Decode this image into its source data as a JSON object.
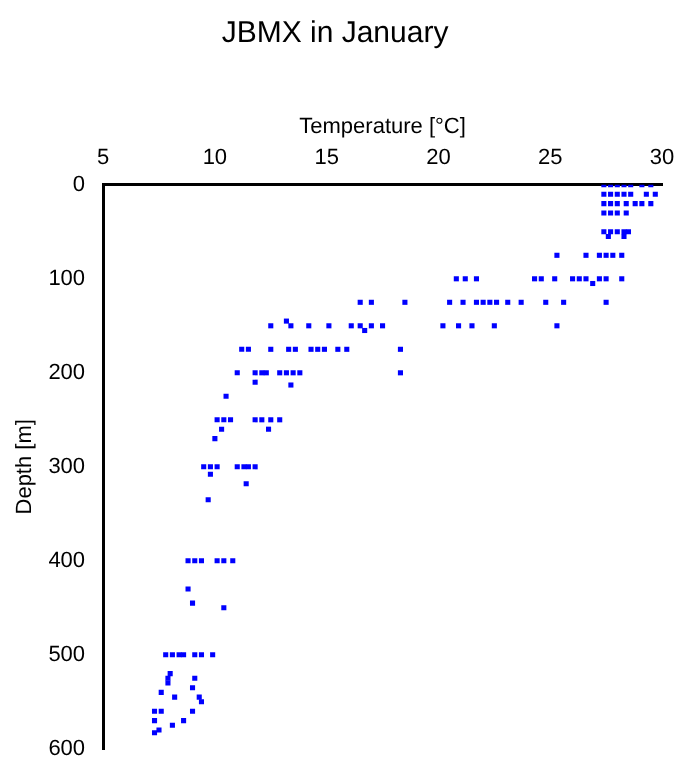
{
  "chart_data": {
    "type": "scatter",
    "title": "JBMX in January",
    "xlabel": "Temperature [°C]",
    "ylabel": "Depth [m]",
    "xlim": [
      5,
      30
    ],
    "xticks": [
      5,
      10,
      15,
      20,
      25,
      30
    ],
    "ylim": [
      600,
      0
    ],
    "yticks": [
      0,
      100,
      200,
      300,
      400,
      500,
      600
    ],
    "grid": false,
    "legend": false,
    "marker": "square",
    "series": [
      {
        "color": "#0000ff",
        "x": [
          27.4,
          27.7,
          28.0,
          28.3,
          28.6,
          29.1,
          29.5,
          27.4,
          27.7,
          28.0,
          28.3,
          28.6,
          29.3,
          29.7,
          27.4,
          27.7,
          28.0,
          28.4,
          28.8,
          29.1,
          29.5,
          27.4,
          27.7,
          28.0,
          28.4,
          27.4,
          27.7,
          28.0,
          28.3,
          28.5,
          27.6,
          28.3,
          25.3,
          26.6,
          27.2,
          27.5,
          27.8,
          28.2,
          20.8,
          21.2,
          21.7,
          24.3,
          24.6,
          25.2,
          26.0,
          26.3,
          26.6,
          27.2,
          27.5,
          28.2,
          26.9,
          16.5,
          17.0,
          18.5,
          20.5,
          21.1,
          21.7,
          22.0,
          22.3,
          22.6,
          23.1,
          23.7,
          24.8,
          25.6,
          27.5,
          13.2,
          12.5,
          13.4,
          14.2,
          15.1,
          16.1,
          16.5,
          17.0,
          17.5,
          20.2,
          20.9,
          21.5,
          22.5,
          25.3,
          16.7,
          11.2,
          11.5,
          12.5,
          13.3,
          13.6,
          14.3,
          14.6,
          14.9,
          15.5,
          15.9,
          18.3,
          11.0,
          11.8,
          12.1,
          12.3,
          12.9,
          13.2,
          13.5,
          13.8,
          18.3,
          11.8,
          13.4,
          10.5,
          10.1,
          10.4,
          10.7,
          11.8,
          12.1,
          12.5,
          12.9,
          10.3,
          12.4,
          10.0,
          9.5,
          9.8,
          10.1,
          11.0,
          11.3,
          11.5,
          11.8,
          9.8,
          11.4,
          9.7,
          8.8,
          9.1,
          9.4,
          10.1,
          10.4,
          10.8,
          8.8,
          9.0,
          10.4,
          7.8,
          8.1,
          8.4,
          8.6,
          9.1,
          9.4,
          9.9,
          8.0,
          7.9,
          9.1,
          7.9,
          9.0,
          7.6,
          8.2,
          9.3,
          9.4,
          7.3,
          7.6,
          9.0,
          7.3,
          8.6,
          8.1,
          7.5,
          7.3
        ],
        "values": [
          0,
          0,
          0,
          0,
          0,
          0,
          0,
          10,
          10,
          10,
          10,
          10,
          10,
          10,
          20,
          20,
          20,
          20,
          20,
          20,
          20,
          30,
          30,
          30,
          30,
          50,
          50,
          50,
          50,
          50,
          55,
          55,
          75,
          75,
          75,
          75,
          75,
          75,
          100,
          100,
          100,
          100,
          100,
          100,
          100,
          100,
          100,
          100,
          100,
          100,
          105,
          125,
          125,
          125,
          125,
          125,
          125,
          125,
          125,
          125,
          125,
          125,
          125,
          125,
          125,
          145,
          150,
          150,
          150,
          150,
          150,
          150,
          150,
          150,
          150,
          150,
          150,
          150,
          150,
          155,
          175,
          175,
          175,
          175,
          175,
          175,
          175,
          175,
          175,
          175,
          175,
          200,
          200,
          200,
          200,
          200,
          200,
          200,
          200,
          200,
          210,
          213,
          225,
          250,
          250,
          250,
          250,
          250,
          250,
          250,
          260,
          260,
          270,
          300,
          300,
          300,
          300,
          300,
          300,
          300,
          308,
          318,
          335,
          400,
          400,
          400,
          400,
          400,
          400,
          430,
          445,
          450,
          500,
          500,
          500,
          500,
          500,
          500,
          500,
          520,
          525,
          525,
          530,
          535,
          540,
          545,
          545,
          550,
          560,
          560,
          560,
          570,
          570,
          575,
          580,
          583
        ]
      }
    ]
  }
}
